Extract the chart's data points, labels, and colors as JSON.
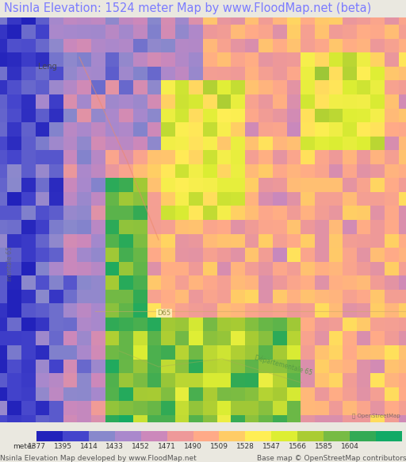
{
  "title": "Nsinla Elevation: 1524 meter Map by www.FloodMap.net (beta)",
  "title_color": "#7b7bff",
  "title_fontsize": 10.5,
  "bg_color": "#eae8e0",
  "colorbar_labels": [
    "meter",
    "1377",
    "1395",
    "1414",
    "1433",
    "1452",
    "1471",
    "1490",
    "1509",
    "1528",
    "1547",
    "1566",
    "1585",
    "1604"
  ],
  "colorbar_colors": [
    "#2222bb",
    "#4444cc",
    "#8888cc",
    "#aa88cc",
    "#cc88bb",
    "#ee9999",
    "#ffaa88",
    "#ffcc66",
    "#ffee55",
    "#ddee33",
    "#aacc33",
    "#77bb44",
    "#33aa55",
    "#11aa66"
  ],
  "footer_left": "Nsinla Elevation Map developed by www.FloodMap.net",
  "footer_right": "Base map © OpenStreetMap contributors",
  "footer_fontsize": 6.5,
  "label_fontsize": 6.5,
  "figsize": [
    5.12,
    5.82
  ],
  "dpi": 100
}
